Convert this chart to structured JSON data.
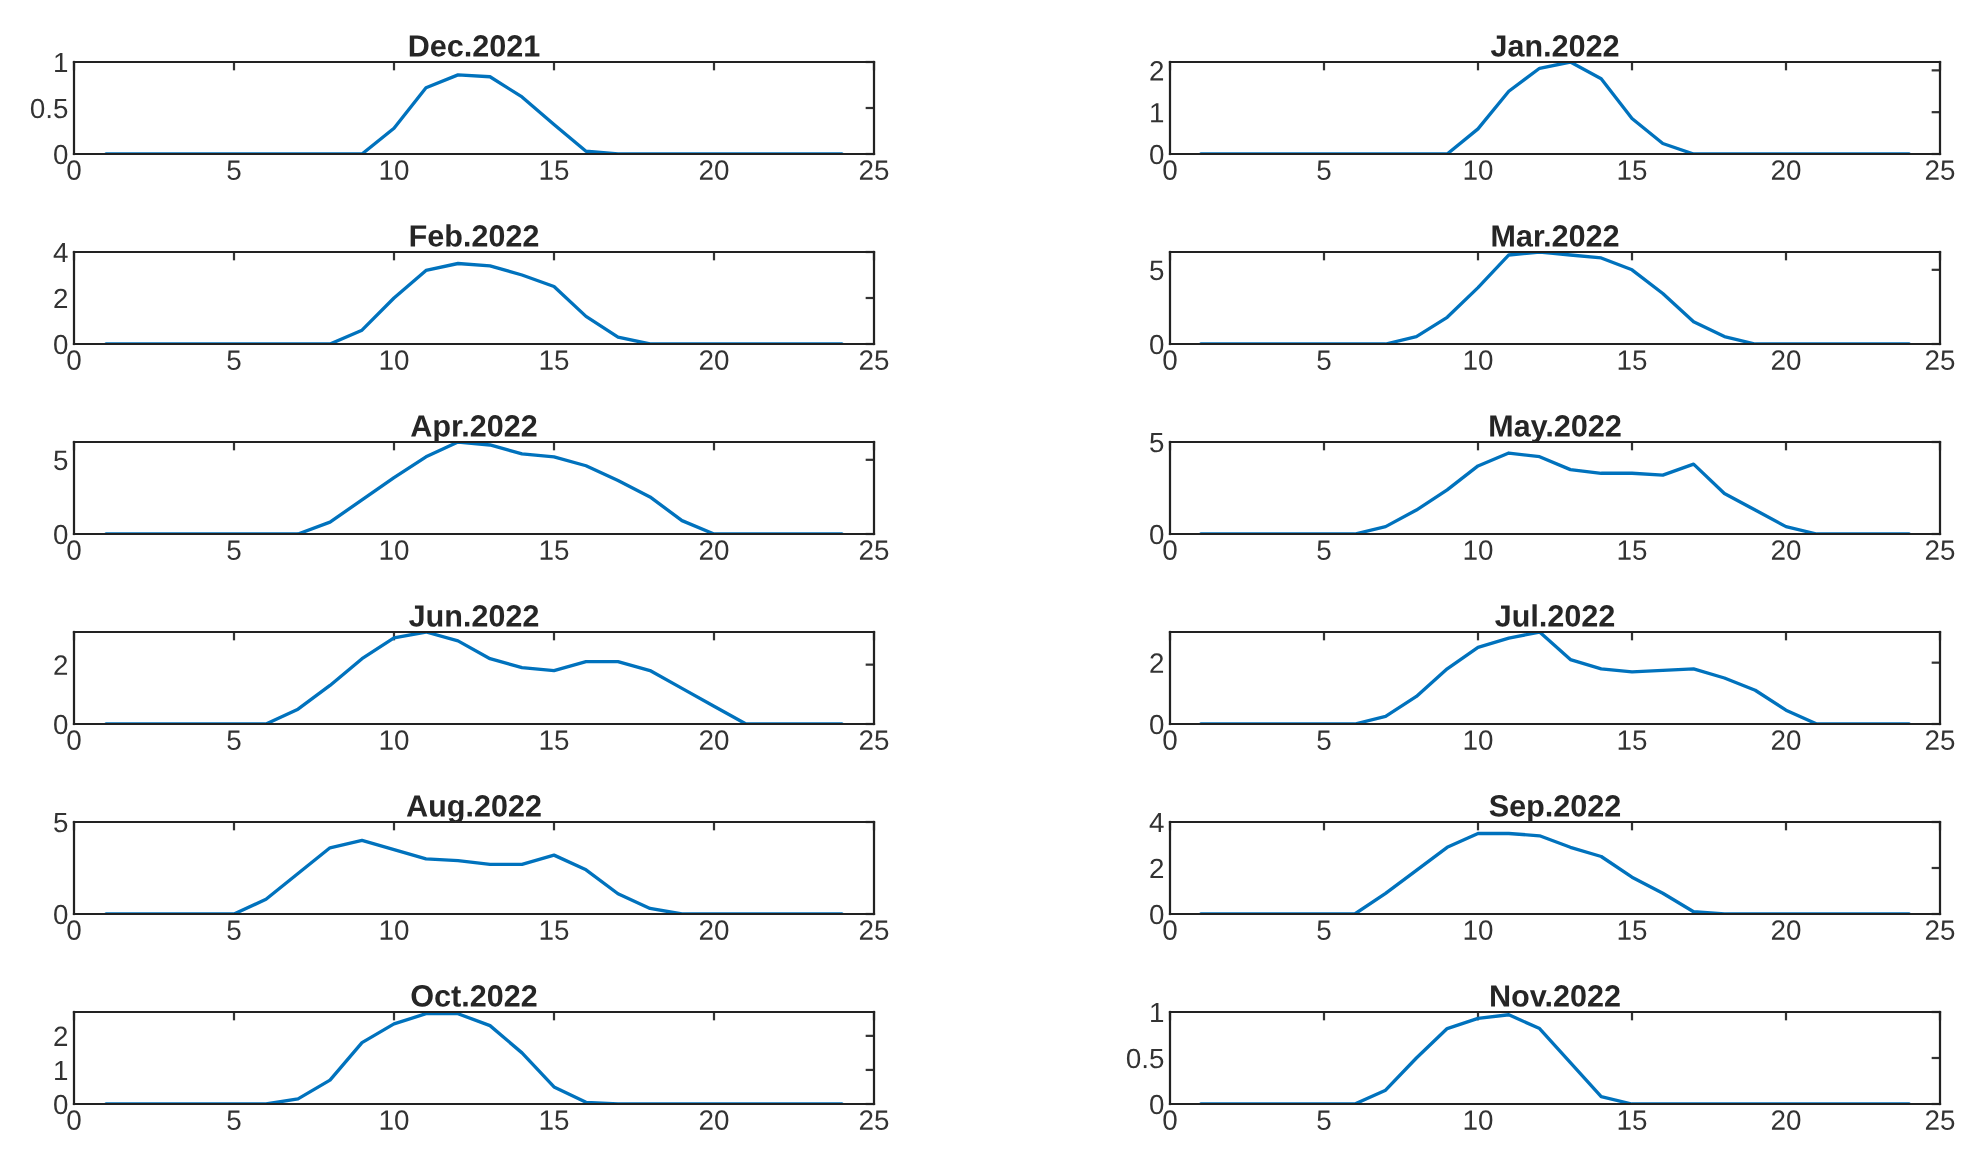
{
  "chart_data": [
    {
      "type": "line",
      "title": "Dec.2021",
      "x": [
        1,
        2,
        3,
        4,
        5,
        6,
        7,
        8,
        9,
        10,
        11,
        12,
        13,
        14,
        15,
        16,
        17,
        18,
        19,
        20,
        21,
        22,
        23,
        24
      ],
      "xlim": [
        0,
        25
      ],
      "xticks": [
        0,
        5,
        10,
        15,
        20,
        25
      ],
      "ylim": [
        0,
        1
      ],
      "yticks": [
        0,
        0.5,
        1
      ],
      "grid": false,
      "series": [
        {
          "color": "#0072bd",
          "values": [
            0,
            0,
            0,
            0,
            0,
            0,
            0,
            0,
            0,
            0.28,
            0.72,
            0.86,
            0.84,
            0.62,
            0.32,
            0.03,
            0,
            0,
            0,
            0,
            0,
            0,
            0,
            0
          ]
        }
      ]
    },
    {
      "type": "line",
      "title": "Jan.2022",
      "x": [
        1,
        2,
        3,
        4,
        5,
        6,
        7,
        8,
        9,
        10,
        11,
        12,
        13,
        14,
        15,
        16,
        17,
        18,
        19,
        20,
        21,
        22,
        23,
        24
      ],
      "xlim": [
        0,
        25
      ],
      "xticks": [
        0,
        5,
        10,
        15,
        20,
        25
      ],
      "ylim": [
        0,
        2.2
      ],
      "yticks": [
        0,
        1,
        2
      ],
      "grid": false,
      "series": [
        {
          "color": "#0072bd",
          "values": [
            0,
            0,
            0,
            0,
            0,
            0,
            0,
            0,
            0,
            0.6,
            1.5,
            2.05,
            2.2,
            1.8,
            0.85,
            0.25,
            0,
            0,
            0,
            0,
            0,
            0,
            0,
            0
          ]
        }
      ]
    },
    {
      "type": "line",
      "title": "Feb.2022",
      "x": [
        1,
        2,
        3,
        4,
        5,
        6,
        7,
        8,
        9,
        10,
        11,
        12,
        13,
        14,
        15,
        16,
        17,
        18,
        19,
        20,
        21,
        22,
        23,
        24
      ],
      "xlim": [
        0,
        25
      ],
      "xticks": [
        0,
        5,
        10,
        15,
        20,
        25
      ],
      "ylim": [
        0,
        4
      ],
      "yticks": [
        0,
        2,
        4
      ],
      "grid": false,
      "series": [
        {
          "color": "#0072bd",
          "values": [
            0,
            0,
            0,
            0,
            0,
            0,
            0,
            0,
            0.6,
            2.0,
            3.2,
            3.5,
            3.4,
            3.0,
            2.5,
            1.2,
            0.3,
            0,
            0,
            0,
            0,
            0,
            0,
            0
          ]
        }
      ]
    },
    {
      "type": "line",
      "title": "Mar.2022",
      "x": [
        1,
        2,
        3,
        4,
        5,
        6,
        7,
        8,
        9,
        10,
        11,
        12,
        13,
        14,
        15,
        16,
        17,
        18,
        19,
        20,
        21,
        22,
        23,
        24
      ],
      "xlim": [
        0,
        25
      ],
      "xticks": [
        0,
        5,
        10,
        15,
        20,
        25
      ],
      "ylim": [
        0,
        6.2
      ],
      "yticks": [
        0,
        5
      ],
      "grid": false,
      "series": [
        {
          "color": "#0072bd",
          "values": [
            0,
            0,
            0,
            0,
            0,
            0,
            0,
            0.5,
            1.8,
            3.8,
            6.0,
            6.2,
            6.0,
            5.8,
            5.0,
            3.4,
            1.5,
            0.5,
            0,
            0,
            0,
            0,
            0,
            0
          ]
        }
      ]
    },
    {
      "type": "line",
      "title": "Apr.2022",
      "x": [
        1,
        2,
        3,
        4,
        5,
        6,
        7,
        8,
        9,
        10,
        11,
        12,
        13,
        14,
        15,
        16,
        17,
        18,
        19,
        20,
        21,
        22,
        23,
        24
      ],
      "xlim": [
        0,
        25
      ],
      "xticks": [
        0,
        5,
        10,
        15,
        20,
        25
      ],
      "ylim": [
        0,
        6.2
      ],
      "yticks": [
        0,
        5
      ],
      "grid": false,
      "series": [
        {
          "color": "#0072bd",
          "values": [
            0,
            0,
            0,
            0,
            0,
            0,
            0,
            0.8,
            2.3,
            3.8,
            5.2,
            6.2,
            6.0,
            5.4,
            5.2,
            4.6,
            3.6,
            2.5,
            0.9,
            0,
            0,
            0,
            0,
            0
          ]
        }
      ]
    },
    {
      "type": "line",
      "title": "May.2022",
      "x": [
        1,
        2,
        3,
        4,
        5,
        6,
        7,
        8,
        9,
        10,
        11,
        12,
        13,
        14,
        15,
        16,
        17,
        18,
        19,
        20,
        21,
        22,
        23,
        24
      ],
      "xlim": [
        0,
        25
      ],
      "xticks": [
        0,
        5,
        10,
        15,
        20,
        25
      ],
      "ylim": [
        0,
        5
      ],
      "yticks": [
        0,
        5
      ],
      "grid": false,
      "series": [
        {
          "color": "#0072bd",
          "values": [
            0,
            0,
            0,
            0,
            0,
            0,
            0.4,
            1.3,
            2.4,
            3.7,
            4.4,
            4.2,
            3.5,
            3.3,
            3.3,
            3.2,
            3.8,
            2.2,
            1.3,
            0.4,
            0,
            0,
            0,
            0
          ]
        }
      ]
    },
    {
      "type": "line",
      "title": "Jun.2022",
      "x": [
        1,
        2,
        3,
        4,
        5,
        6,
        7,
        8,
        9,
        10,
        11,
        12,
        13,
        14,
        15,
        16,
        17,
        18,
        19,
        20,
        21,
        22,
        23,
        24
      ],
      "xlim": [
        0,
        25
      ],
      "xticks": [
        0,
        5,
        10,
        15,
        20,
        25
      ],
      "ylim": [
        0,
        3.1
      ],
      "yticks": [
        0,
        2
      ],
      "grid": false,
      "series": [
        {
          "color": "#0072bd",
          "values": [
            0,
            0,
            0,
            0,
            0,
            0,
            0.5,
            1.3,
            2.2,
            2.9,
            3.1,
            2.8,
            2.2,
            1.9,
            1.8,
            2.1,
            2.1,
            1.8,
            1.2,
            0.6,
            0,
            0,
            0,
            0
          ]
        }
      ]
    },
    {
      "type": "line",
      "title": "Jul.2022",
      "x": [
        1,
        2,
        3,
        4,
        5,
        6,
        7,
        8,
        9,
        10,
        11,
        12,
        13,
        14,
        15,
        16,
        17,
        18,
        19,
        20,
        21,
        22,
        23,
        24
      ],
      "xlim": [
        0,
        25
      ],
      "xticks": [
        0,
        5,
        10,
        15,
        20,
        25
      ],
      "ylim": [
        0,
        3.0
      ],
      "yticks": [
        0,
        2
      ],
      "grid": false,
      "series": [
        {
          "color": "#0072bd",
          "values": [
            0,
            0,
            0,
            0,
            0,
            0,
            0.25,
            0.9,
            1.8,
            2.5,
            2.8,
            3.0,
            2.1,
            1.8,
            1.7,
            1.75,
            1.8,
            1.5,
            1.1,
            0.45,
            0,
            0,
            0,
            0
          ]
        }
      ]
    },
    {
      "type": "line",
      "title": "Aug.2022",
      "x": [
        1,
        2,
        3,
        4,
        5,
        6,
        7,
        8,
        9,
        10,
        11,
        12,
        13,
        14,
        15,
        16,
        17,
        18,
        19,
        20,
        21,
        22,
        23,
        24
      ],
      "xlim": [
        0,
        25
      ],
      "xticks": [
        0,
        5,
        10,
        15,
        20,
        25
      ],
      "ylim": [
        0,
        5
      ],
      "yticks": [
        0,
        5
      ],
      "grid": false,
      "series": [
        {
          "color": "#0072bd",
          "values": [
            0,
            0,
            0,
            0,
            0,
            0.8,
            2.2,
            3.6,
            4.0,
            3.5,
            3.0,
            2.9,
            2.7,
            2.7,
            3.2,
            2.4,
            1.1,
            0.3,
            0,
            0,
            0,
            0,
            0,
            0
          ]
        }
      ]
    },
    {
      "type": "line",
      "title": "Sep.2022",
      "x": [
        1,
        2,
        3,
        4,
        5,
        6,
        7,
        8,
        9,
        10,
        11,
        12,
        13,
        14,
        15,
        16,
        17,
        18,
        19,
        20,
        21,
        22,
        23,
        24
      ],
      "xlim": [
        0,
        25
      ],
      "xticks": [
        0,
        5,
        10,
        15,
        20,
        25
      ],
      "ylim": [
        0,
        4
      ],
      "yticks": [
        0,
        2,
        4
      ],
      "grid": false,
      "series": [
        {
          "color": "#0072bd",
          "values": [
            0,
            0,
            0,
            0,
            0,
            0,
            0.9,
            1.9,
            2.9,
            3.5,
            3.5,
            3.4,
            2.9,
            2.5,
            1.6,
            0.9,
            0.1,
            0,
            0,
            0,
            0,
            0,
            0,
            0
          ]
        }
      ]
    },
    {
      "type": "line",
      "title": "Oct.2022",
      "x": [
        1,
        2,
        3,
        4,
        5,
        6,
        7,
        8,
        9,
        10,
        11,
        12,
        13,
        14,
        15,
        16,
        17,
        18,
        19,
        20,
        21,
        22,
        23,
        24
      ],
      "xlim": [
        0,
        25
      ],
      "xticks": [
        0,
        5,
        10,
        15,
        20,
        25
      ],
      "ylim": [
        0,
        2.7
      ],
      "yticks": [
        0,
        1,
        2
      ],
      "grid": false,
      "series": [
        {
          "color": "#0072bd",
          "values": [
            0,
            0,
            0,
            0,
            0,
            0,
            0.15,
            0.7,
            1.8,
            2.35,
            2.65,
            2.65,
            2.3,
            1.5,
            0.5,
            0.05,
            0,
            0,
            0,
            0,
            0,
            0,
            0,
            0
          ]
        }
      ]
    },
    {
      "type": "line",
      "title": "Nov.2022",
      "x": [
        1,
        2,
        3,
        4,
        5,
        6,
        7,
        8,
        9,
        10,
        11,
        12,
        13,
        14,
        15,
        16,
        17,
        18,
        19,
        20,
        21,
        22,
        23,
        24
      ],
      "xlim": [
        0,
        25
      ],
      "xticks": [
        0,
        5,
        10,
        15,
        20,
        25
      ],
      "ylim": [
        0,
        1
      ],
      "yticks": [
        0,
        0.5,
        1
      ],
      "grid": false,
      "series": [
        {
          "color": "#0072bd",
          "values": [
            0,
            0,
            0,
            0,
            0,
            0,
            0.15,
            0.5,
            0.82,
            0.93,
            0.97,
            0.82,
            0.45,
            0.08,
            0,
            0,
            0,
            0,
            0,
            0,
            0,
            0,
            0,
            0
          ]
        }
      ]
    }
  ]
}
